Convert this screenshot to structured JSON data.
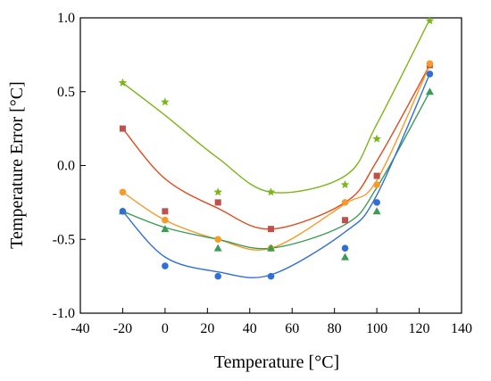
{
  "chart_data": {
    "type": "scatter",
    "title": "",
    "xlabel": "Temperature [°C]",
    "ylabel": "Temperature Error [°C]",
    "xlim": [
      -40,
      140
    ],
    "ylim": [
      -1.0,
      1.0
    ],
    "xticks": [
      -40,
      -20,
      0,
      20,
      40,
      60,
      80,
      100,
      120,
      140
    ],
    "xtick_labels": [
      "-40",
      "-20",
      "0",
      "20",
      "40",
      "60",
      "80",
      "100",
      "120",
      "140"
    ],
    "yticks": [
      -1.0,
      -0.5,
      0.0,
      0.5,
      1.0
    ],
    "ytick_labels": [
      "-1.0",
      "-0.5",
      "0.0",
      "0.5",
      "1.0"
    ],
    "grid": false,
    "legend": "none",
    "series": [
      {
        "marker": "star",
        "color": "#7cb518",
        "fit_color": "#7cb518",
        "x": [
          -20,
          0,
          25,
          50,
          85,
          100,
          125
        ],
        "y": [
          0.56,
          0.43,
          -0.18,
          -0.18,
          -0.13,
          0.18,
          0.98
        ],
        "fit": [
          0.56,
          0.34,
          0.05,
          -0.18,
          -0.07,
          0.28,
          0.99
        ]
      },
      {
        "marker": "square",
        "color": "#c0504d",
        "fit_color": "#e04a1c",
        "x": [
          -20,
          0,
          25,
          50,
          85,
          100,
          125
        ],
        "y": [
          0.25,
          -0.31,
          -0.25,
          -0.43,
          -0.37,
          -0.07,
          0.68
        ],
        "fit": [
          0.25,
          -0.09,
          -0.29,
          -0.43,
          -0.25,
          0.03,
          0.68
        ]
      },
      {
        "marker": "circle",
        "color": "#f39c2a",
        "fit_color": "#f39c2a",
        "x": [
          -20,
          0,
          25,
          50,
          85,
          100,
          125
        ],
        "y": [
          -0.18,
          -0.37,
          -0.5,
          -0.56,
          -0.25,
          -0.13,
          0.69
        ],
        "fit": [
          -0.18,
          -0.37,
          -0.5,
          -0.56,
          -0.26,
          -0.1,
          0.68
        ]
      },
      {
        "marker": "triangle",
        "color": "#3a9b57",
        "fit_color": "#3a9b57",
        "x": [
          -20,
          0,
          25,
          50,
          85,
          100,
          125
        ],
        "y": [
          -0.31,
          -0.43,
          -0.56,
          -0.56,
          -0.62,
          -0.31,
          0.5
        ],
        "fit": [
          -0.31,
          -0.42,
          -0.5,
          -0.56,
          -0.4,
          -0.15,
          0.5
        ]
      },
      {
        "marker": "circle",
        "color": "#2f6fd6",
        "fit_color": "#2f6fd6",
        "x": [
          -20,
          0,
          25,
          50,
          85,
          100,
          125
        ],
        "y": [
          -0.31,
          -0.68,
          -0.75,
          -0.75,
          -0.56,
          -0.25,
          0.62
        ],
        "fit": [
          -0.31,
          -0.62,
          -0.72,
          -0.74,
          -0.45,
          -0.2,
          0.62
        ]
      }
    ]
  }
}
